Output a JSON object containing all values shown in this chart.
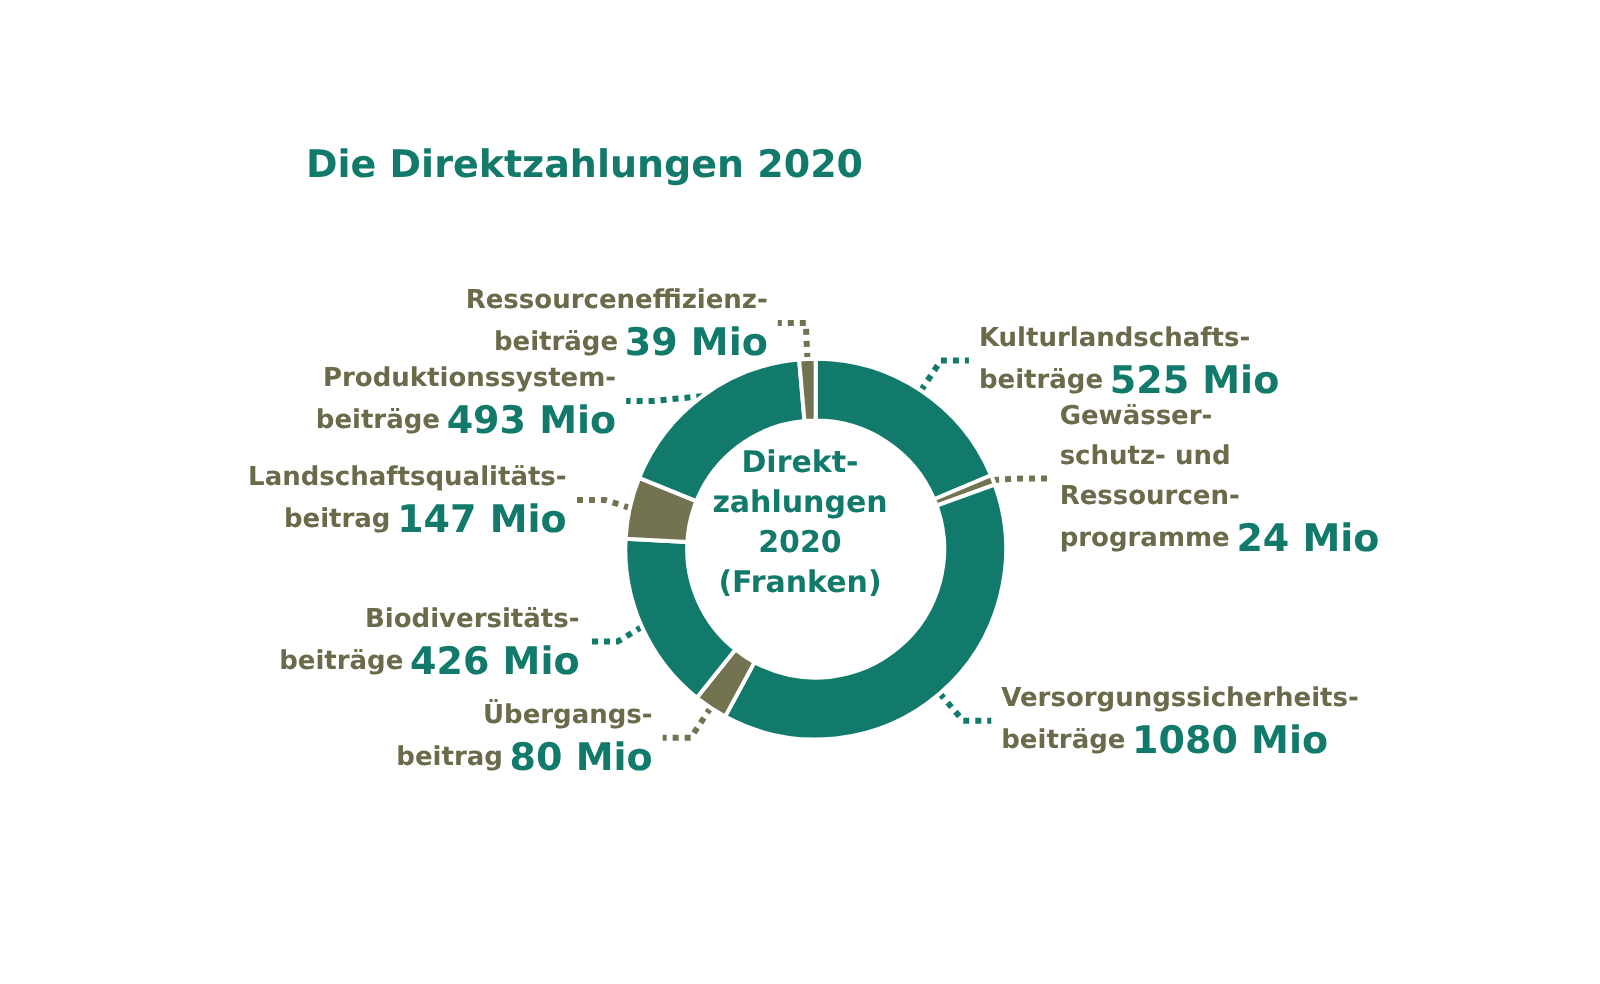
{
  "chart_data": {
    "type": "donut",
    "title": "Die Direktzahlungen 2020",
    "categories": [
      "Kulturlandschafts-\nbeiträge",
      "Gewässer-\nschutz- und\nRessourcen-\nprogramme",
      "Versorgungssicherheits-\nbeiträge",
      "Übergangs-\nbeitrag",
      "Biodiversitäts-\nbeiträge",
      "Landschaftsqualitäts-\nbeitrag",
      "Produktionssystem-\nbeiträge",
      "Ressourceneffizienz-\nbeiträge"
    ],
    "values": [
      525,
      24,
      1080,
      80,
      426,
      147,
      493,
      39
    ],
    "colors": [
      "#127a6a",
      "#737251",
      "#127a6a",
      "#737251",
      "#127a6a",
      "#737251",
      "#127a6a",
      "#737251"
    ],
    "value_labels": [
      "525 Mio",
      "24 Mio",
      "1080 Mio",
      "80 Mio",
      "426 Mio",
      "147 Mio",
      "493 Mio",
      "39 Mio"
    ],
    "annotations": [
      "Direkt-\nzahlungen\n2020\n(Franken)"
    ],
    "legend": false
  }
}
